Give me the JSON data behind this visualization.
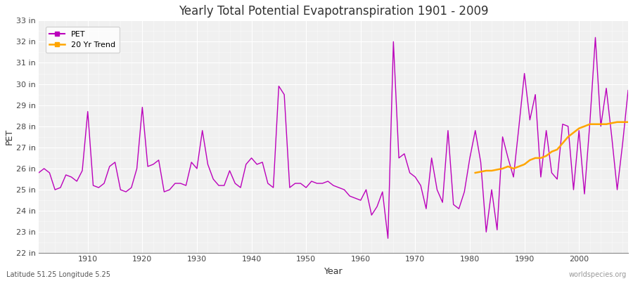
{
  "title": "Yearly Total Potential Evapotranspiration 1901 - 2009",
  "xlabel": "Year",
  "ylabel": "PET",
  "subtitle": "Latitude 51.25 Longitude 5.25",
  "watermark": "worldspecies.org",
  "pet_color": "#bb00bb",
  "trend_color": "#ffa500",
  "bg_color": "#f0f0f0",
  "ylim": [
    22,
    33
  ],
  "yticks": [
    22,
    23,
    24,
    25,
    26,
    27,
    28,
    29,
    30,
    31,
    32,
    33
  ],
  "ytick_labels": [
    "22 in",
    "23 in",
    "24 in",
    "25 in",
    "26 in",
    "27 in",
    "28 in",
    "29 in",
    "30 in",
    "31 in",
    "32 in",
    "33 in"
  ],
  "years": [
    1901,
    1902,
    1903,
    1904,
    1905,
    1906,
    1907,
    1908,
    1909,
    1910,
    1911,
    1912,
    1913,
    1914,
    1915,
    1916,
    1917,
    1918,
    1919,
    1920,
    1921,
    1922,
    1923,
    1924,
    1925,
    1926,
    1927,
    1928,
    1929,
    1930,
    1931,
    1932,
    1933,
    1934,
    1935,
    1936,
    1937,
    1938,
    1939,
    1940,
    1941,
    1942,
    1943,
    1944,
    1945,
    1946,
    1947,
    1948,
    1949,
    1950,
    1951,
    1952,
    1953,
    1954,
    1955,
    1956,
    1957,
    1958,
    1959,
    1960,
    1961,
    1962,
    1963,
    1964,
    1965,
    1966,
    1967,
    1968,
    1969,
    1970,
    1971,
    1972,
    1973,
    1974,
    1975,
    1976,
    1977,
    1978,
    1979,
    1980,
    1981,
    1982,
    1983,
    1984,
    1985,
    1986,
    1987,
    1988,
    1989,
    1990,
    1991,
    1992,
    1993,
    1994,
    1995,
    1996,
    1997,
    1998,
    1999,
    2000,
    2001,
    2002,
    2003,
    2004,
    2005,
    2006,
    2007,
    2008,
    2009
  ],
  "pet_values": [
    25.8,
    26.0,
    25.8,
    25.0,
    25.1,
    25.7,
    25.6,
    25.4,
    25.9,
    28.7,
    25.2,
    25.1,
    25.3,
    26.1,
    26.3,
    25.0,
    24.9,
    25.1,
    26.0,
    28.9,
    26.1,
    26.2,
    26.4,
    24.9,
    25.0,
    25.3,
    25.3,
    25.2,
    26.3,
    26.0,
    27.8,
    26.2,
    25.5,
    25.2,
    25.2,
    25.9,
    25.3,
    25.1,
    26.2,
    26.5,
    26.2,
    26.3,
    25.3,
    25.1,
    29.9,
    29.5,
    25.1,
    25.3,
    25.3,
    25.1,
    25.4,
    25.3,
    25.3,
    25.4,
    25.2,
    25.1,
    25.0,
    24.7,
    24.6,
    24.5,
    25.0,
    23.8,
    24.2,
    24.9,
    22.7,
    32.0,
    26.5,
    26.7,
    25.8,
    25.6,
    25.2,
    24.1,
    26.5,
    25.0,
    24.4,
    27.8,
    24.3,
    24.1,
    24.9,
    26.5,
    27.8,
    26.3,
    23.0,
    25.0,
    23.1,
    27.5,
    26.5,
    25.6,
    28.0,
    30.5,
    28.3,
    29.5,
    25.6,
    27.8,
    25.8,
    25.5,
    28.1,
    28.0,
    25.0,
    27.8,
    24.8,
    28.2,
    32.2,
    28.0,
    29.8,
    27.5,
    25.0,
    27.2,
    29.7
  ],
  "trend_years": [
    1981,
    1982,
    1983,
    1984,
    1985,
    1986,
    1987,
    1988,
    1989,
    1990,
    1991,
    1992,
    1993,
    1994,
    1995,
    1996,
    1997,
    1998,
    1999,
    2000,
    2001,
    2002,
    2003,
    2004,
    2005,
    2006,
    2007,
    2008,
    2009
  ],
  "trend_values": [
    25.8,
    25.85,
    25.9,
    25.9,
    25.95,
    26.0,
    26.1,
    26.0,
    26.1,
    26.2,
    26.4,
    26.5,
    26.5,
    26.6,
    26.8,
    26.9,
    27.2,
    27.5,
    27.7,
    27.9,
    28.0,
    28.1,
    28.1,
    28.1,
    28.1,
    28.15,
    28.2,
    28.2,
    28.2
  ]
}
